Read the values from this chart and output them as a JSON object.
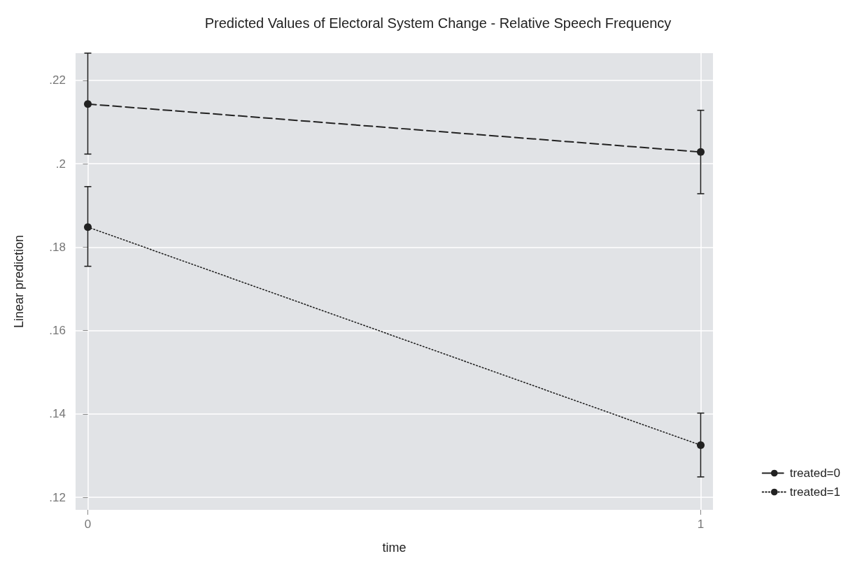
{
  "chart_data": {
    "type": "line",
    "title": "Predicted Values of Electoral System Change - Relative Speech Frequency",
    "xlabel": "time",
    "ylabel": "Linear prediction",
    "x": [
      0,
      1
    ],
    "series": [
      {
        "name": "treated=0",
        "color": "#222222",
        "values": [
          0.2143,
          0.2028
        ],
        "errors": [
          [
            0.2023,
            0.2265
          ],
          [
            0.1928,
            0.2128
          ]
        ],
        "line_style": "dashed"
      },
      {
        "name": "treated=1",
        "color": "#222222",
        "values": [
          0.1848,
          0.1325
        ],
        "errors": [
          [
            0.1754,
            0.1945
          ],
          [
            0.1249,
            0.1402
          ]
        ],
        "line_style": "dotted"
      }
    ],
    "xlim": [
      -0.02,
      1.02
    ],
    "xticks": [
      0,
      1
    ],
    "ylim": [
      0.117,
      0.2265
    ],
    "yticks": [
      {
        "value": 0.12,
        "label": ".12"
      },
      {
        "value": 0.14,
        "label": ".14"
      },
      {
        "value": 0.16,
        "label": ".16"
      },
      {
        "value": 0.18,
        "label": ".18"
      },
      {
        "value": 0.2,
        "label": ".2"
      },
      {
        "value": 0.22,
        "label": ".22"
      }
    ],
    "grid": true,
    "legend": "bottom right",
    "marker": "circle"
  }
}
